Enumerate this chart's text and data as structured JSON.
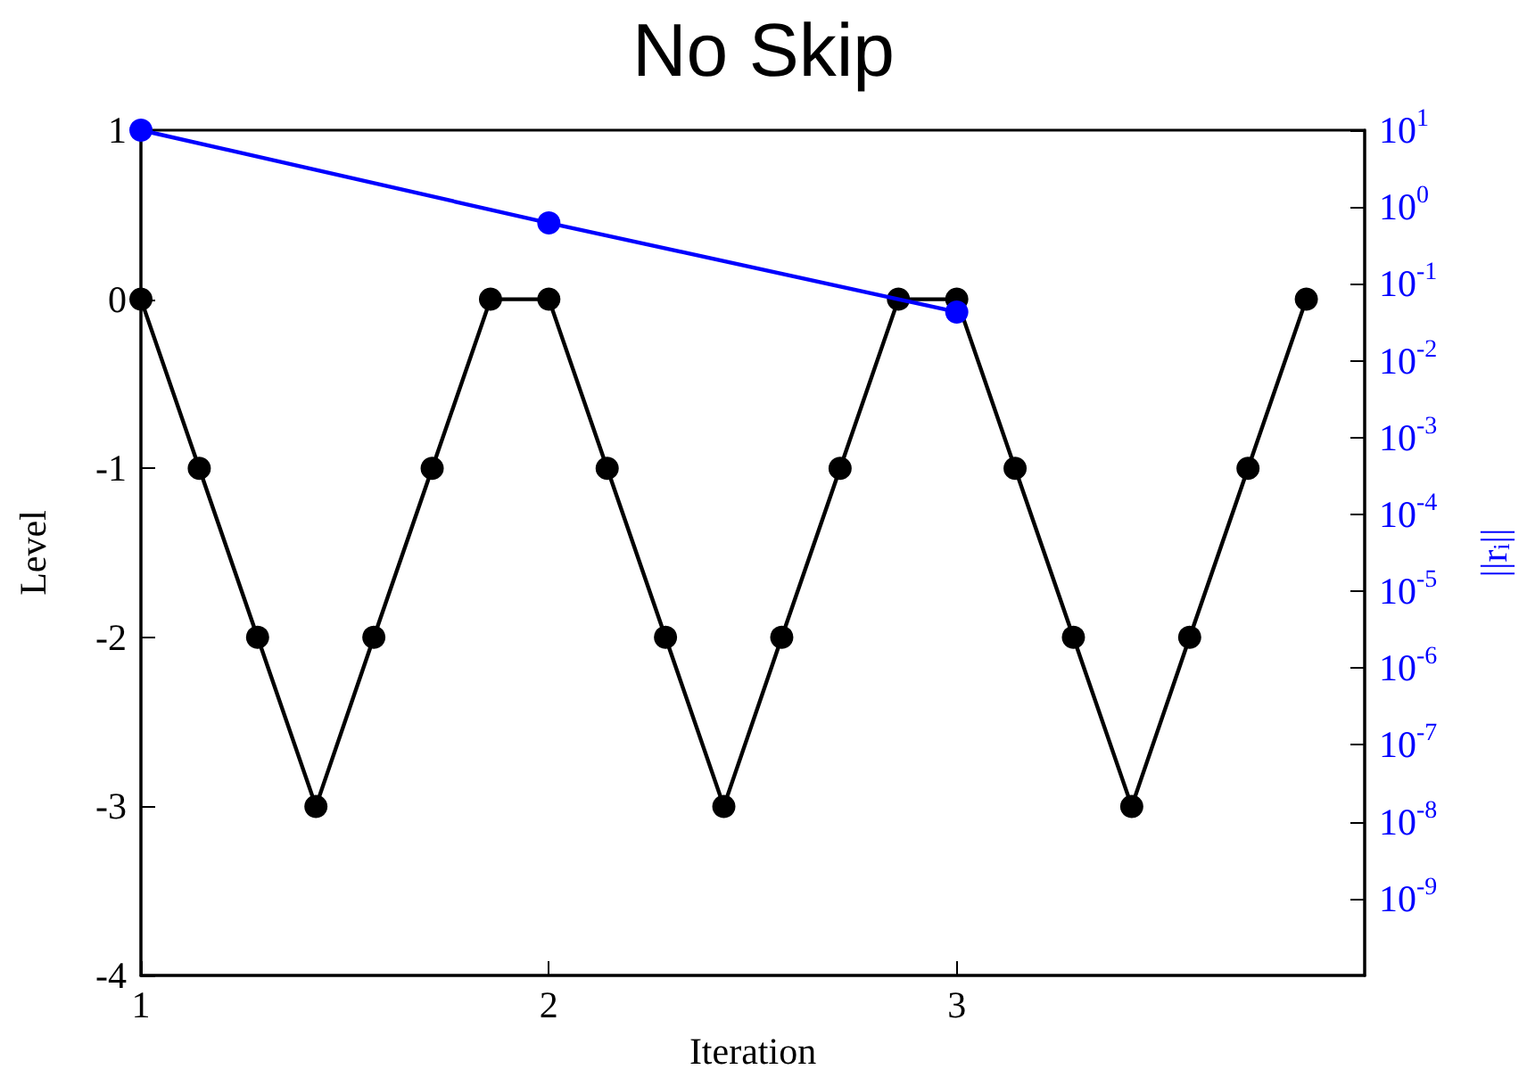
{
  "chart_data": {
    "type": "line",
    "title": "No Skip",
    "xlabel": "Iteration",
    "ylabel": "Level",
    "y2label": "||r$_{i}$||",
    "xlim": [
      1,
      4
    ],
    "xticks": [
      1,
      2,
      3
    ],
    "ylim": [
      -4,
      1
    ],
    "yticks": [
      -4,
      -3,
      -2,
      -1,
      0,
      1
    ],
    "y2lim": [
      1e-10,
      10
    ],
    "y2ticks": [
      {
        "value": 1e-09,
        "label": "10$^{-9}$"
      },
      {
        "value": 1e-08,
        "label": "10$^{-8}$"
      },
      {
        "value": 1e-07,
        "label": "10$^{-7}$"
      },
      {
        "value": 1e-06,
        "label": "10$^{-6}$"
      },
      {
        "value": 1e-05,
        "label": "10$^{-5}$"
      },
      {
        "value": 0.0001,
        "label": "10$^{-4}$"
      },
      {
        "value": 0.001,
        "label": "10$^{-3}$"
      },
      {
        "value": 0.01,
        "label": "10$^{-2}$"
      },
      {
        "value": 0.1,
        "label": "10$^{-1}$"
      },
      {
        "value": 1,
        "label": "10$^{0}$"
      },
      {
        "value": 10,
        "label": "10$^{1}$"
      }
    ],
    "log": "y2",
    "grid": false,
    "marker": "circle",
    "line_style": "solid",
    "series": [
      {
        "color": "#000000",
        "x": [
          1,
          1.143,
          1.286,
          1.429,
          1.571,
          1.714,
          1.857,
          2,
          2.143,
          2.286,
          2.429,
          2.571,
          2.714,
          2.857,
          3,
          3.143,
          3.286,
          3.429,
          3.571,
          3.714,
          3.857
        ],
        "values": [
          0,
          -1,
          -2,
          -3,
          -2,
          -1,
          0,
          0,
          -1,
          -2,
          -3,
          -2,
          -1,
          0,
          0,
          -1,
          -2,
          -3,
          -2,
          -1,
          0
        ]
      },
      {
        "color": "#0000ff",
        "axis": "y2",
        "x": [
          1,
          2,
          3
        ],
        "values": [
          10,
          0.62,
          0.043
        ]
      }
    ]
  }
}
